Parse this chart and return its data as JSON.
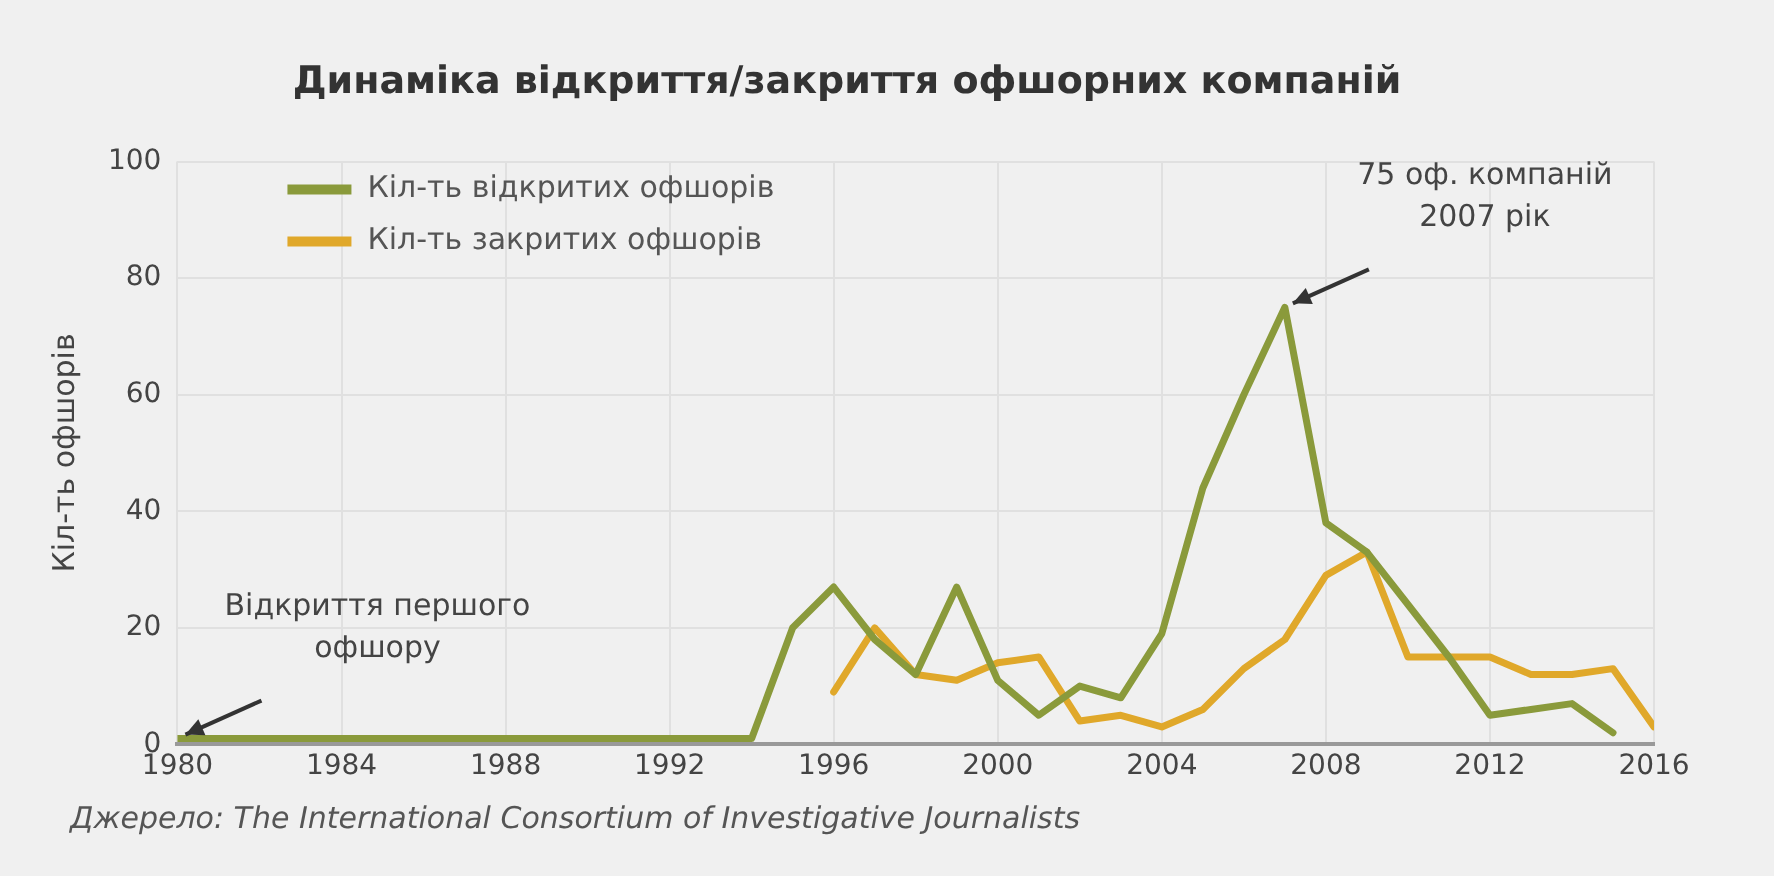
{
  "chart_data": {
    "type": "line",
    "title": "Динаміка відкриття/закриття офшорних компаній",
    "ylabel": "Кіл-ть офшорів",
    "xlim": [
      1980,
      2016
    ],
    "xticks": [
      1980,
      1984,
      1988,
      1992,
      1996,
      2000,
      2004,
      2008,
      2012,
      2016
    ],
    "ylim": [
      0,
      100
    ],
    "yticks": [
      0,
      20,
      40,
      60,
      80,
      100
    ],
    "grid": true,
    "legend": "top left",
    "marker": "none",
    "line_style": "solid",
    "series": [
      {
        "name": "Кіл-ть відкритих офшорів",
        "color": "#8a9a3b",
        "x": [
          1980,
          1981,
          1982,
          1983,
          1984,
          1985,
          1986,
          1987,
          1988,
          1989,
          1990,
          1991,
          1992,
          1993,
          1994,
          1995,
          1996,
          1997,
          1998,
          1999,
          2000,
          2001,
          2002,
          2003,
          2004,
          2005,
          2006,
          2007,
          2008,
          2009,
          2010,
          2011,
          2012,
          2013,
          2014,
          2015
        ],
        "values": [
          1,
          1,
          1,
          1,
          1,
          1,
          1,
          1,
          1,
          1,
          1,
          1,
          1,
          1,
          1,
          20,
          27,
          18,
          12,
          27,
          11,
          5,
          10,
          8,
          19,
          44,
          60,
          75,
          38,
          33,
          24,
          15,
          5,
          6,
          7,
          2
        ]
      },
      {
        "name": "Кіл-ть закритих офшорів",
        "color": "#e0a82a",
        "x": [
          1996,
          1997,
          1998,
          1999,
          2000,
          2001,
          2002,
          2003,
          2004,
          2005,
          2006,
          2007,
          2008,
          2009,
          2010,
          2011,
          2012,
          2013,
          2014,
          2015,
          2016
        ],
        "values": [
          9,
          20,
          12,
          11,
          14,
          15,
          4,
          5,
          3,
          6,
          13,
          18,
          29,
          33,
          15,
          15,
          15,
          12,
          12,
          13,
          3
        ]
      }
    ],
    "annotations": [
      {
        "text": "Відкриття першого офшору",
        "x": 1980,
        "y": 1
      },
      {
        "text": "75 оф. компаній 2007 рік",
        "x": 2007,
        "y": 75
      },
      "Джерело: The International Consortium of Investigative Journalists"
    ]
  }
}
